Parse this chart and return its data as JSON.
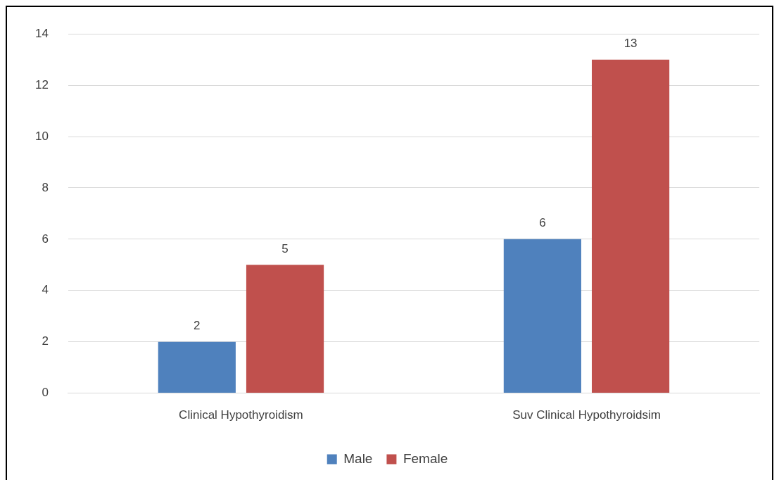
{
  "chart_data": {
    "type": "bar",
    "categories": [
      "Clinical Hypothyroidism",
      "Suv Clinical Hypothyroidsim"
    ],
    "series": [
      {
        "name": "Male",
        "color": "#4f81bd",
        "values": [
          2,
          6
        ]
      },
      {
        "name": "Female",
        "color": "#c0504d",
        "values": [
          5,
          13
        ]
      }
    ],
    "ylim": [
      0,
      14
    ],
    "yticks": [
      0,
      2,
      4,
      6,
      8,
      10,
      12,
      14
    ],
    "grid": "y",
    "legend": "bottom",
    "data_labels": true
  }
}
